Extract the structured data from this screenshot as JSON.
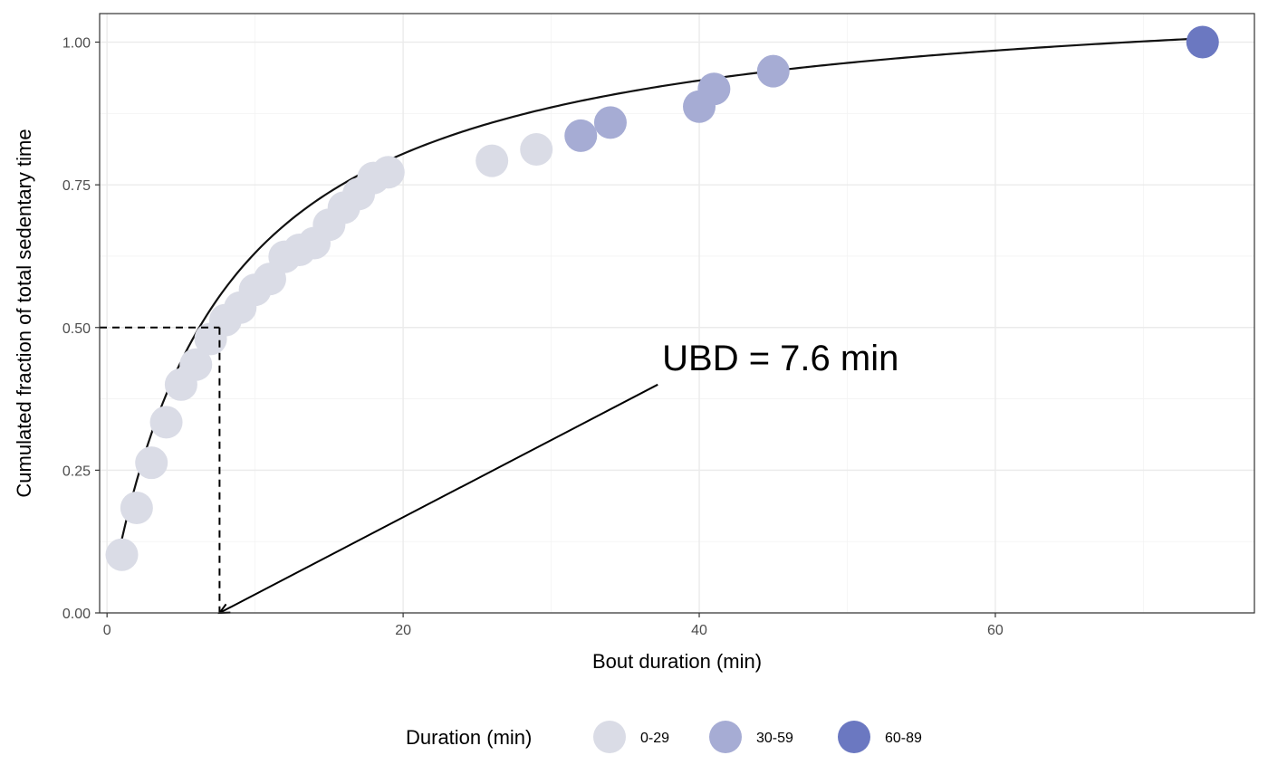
{
  "chart_data": {
    "type": "scatter",
    "xlabel": "Bout duration (min)",
    "ylabel": "Cumulated fraction of total sedentary time",
    "xlim": [
      -0.5,
      77.5
    ],
    "ylim": [
      -0.0,
      1.05
    ],
    "x_ticks": [
      0,
      20,
      40,
      60
    ],
    "x_tick_labels": [
      "0",
      "20",
      "40",
      "60"
    ],
    "y_ticks": [
      0,
      0.25,
      0.5,
      0.75,
      1.0
    ],
    "y_tick_labels": [
      "0.00",
      "0.25",
      "0.50",
      "0.75",
      "1.00"
    ],
    "grid": true,
    "legend": {
      "title": "Duration (min)",
      "position": "bottom",
      "items": [
        {
          "label": "0-29",
          "color": "#dadce6"
        },
        {
          "label": "30-59",
          "color": "#a6acd4"
        },
        {
          "label": "60-89",
          "color": "#6b78c1"
        }
      ]
    },
    "points": [
      {
        "x": 1,
        "y": 0.102,
        "group": "0-29"
      },
      {
        "x": 2,
        "y": 0.184,
        "group": "0-29"
      },
      {
        "x": 3,
        "y": 0.263,
        "group": "0-29"
      },
      {
        "x": 4,
        "y": 0.334,
        "group": "0-29"
      },
      {
        "x": 5,
        "y": 0.4,
        "group": "0-29"
      },
      {
        "x": 6,
        "y": 0.435,
        "group": "0-29"
      },
      {
        "x": 7,
        "y": 0.48,
        "group": "0-29"
      },
      {
        "x": 8,
        "y": 0.513,
        "group": "0-29"
      },
      {
        "x": 9,
        "y": 0.535,
        "group": "0-29"
      },
      {
        "x": 10,
        "y": 0.566,
        "group": "0-29"
      },
      {
        "x": 11,
        "y": 0.585,
        "group": "0-29"
      },
      {
        "x": 12,
        "y": 0.624,
        "group": "0-29"
      },
      {
        "x": 13,
        "y": 0.636,
        "group": "0-29"
      },
      {
        "x": 14,
        "y": 0.648,
        "group": "0-29"
      },
      {
        "x": 15,
        "y": 0.68,
        "group": "0-29"
      },
      {
        "x": 16,
        "y": 0.71,
        "group": "0-29"
      },
      {
        "x": 17,
        "y": 0.734,
        "group": "0-29"
      },
      {
        "x": 18,
        "y": 0.762,
        "group": "0-29"
      },
      {
        "x": 19,
        "y": 0.772,
        "group": "0-29"
      },
      {
        "x": 26,
        "y": 0.792,
        "group": "0-29"
      },
      {
        "x": 29,
        "y": 0.812,
        "group": "0-29"
      },
      {
        "x": 32,
        "y": 0.836,
        "group": "30-59"
      },
      {
        "x": 34,
        "y": 0.859,
        "group": "30-59"
      },
      {
        "x": 40,
        "y": 0.887,
        "group": "30-59"
      },
      {
        "x": 41,
        "y": 0.918,
        "group": "30-59"
      },
      {
        "x": 45,
        "y": 0.949,
        "group": "30-59"
      },
      {
        "x": 74,
        "y": 1.0,
        "group": "60-89"
      }
    ],
    "fit_curve": {
      "description_of_model": "y = x / (x + 7.6) * 1.11",
      "half_x": 7.6,
      "scale": 1.11,
      "x_start": 1,
      "x_end": 74
    },
    "reference": {
      "x": 7.6,
      "y": 0.5
    },
    "annotation": {
      "text": "UBD = 7.6 min",
      "text_x": 37.5,
      "text_y": 0.425,
      "arrow_from": [
        37.2,
        0.4
      ],
      "arrow_to": [
        7.6,
        0.0
      ]
    }
  }
}
